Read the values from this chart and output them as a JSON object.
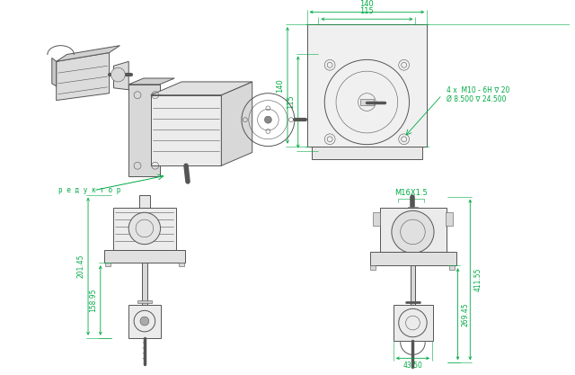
{
  "bg_color": "#ffffff",
  "line_color": "#555555",
  "dim_color": "#00aa44",
  "annotation_color": "#00aa44",
  "label_reduktor": "р е д у к т о р",
  "dim_top_140": "140",
  "dim_top_115": "115",
  "dim_side_140": "140",
  "dim_side_115": "115",
  "dim_note1": "4 x  M10 - 6H ∇ 20",
  "dim_note2": "Ø 8.500 ∇ 24.500",
  "dim_M16": "M16X1.5",
  "dim_411": "411.55",
  "dim_201": "201.45",
  "dim_158": "158.95",
  "dim_269": "269.45",
  "dim_4350": "43.50"
}
